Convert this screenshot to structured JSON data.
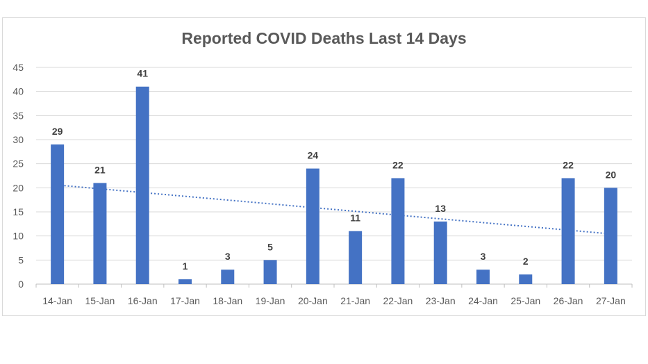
{
  "chart_data": {
    "type": "bar",
    "title": "Reported COVID Deaths Last 14 Days",
    "xlabel": "",
    "ylabel": "",
    "categories": [
      "14-Jan",
      "15-Jan",
      "16-Jan",
      "17-Jan",
      "18-Jan",
      "19-Jan",
      "20-Jan",
      "21-Jan",
      "22-Jan",
      "23-Jan",
      "24-Jan",
      "25-Jan",
      "26-Jan",
      "27-Jan"
    ],
    "values": [
      29,
      21,
      41,
      1,
      3,
      5,
      24,
      11,
      22,
      13,
      3,
      2,
      22,
      20
    ],
    "ylim": [
      0,
      45
    ],
    "yticks": [
      0,
      5,
      10,
      15,
      20,
      25,
      30,
      35,
      40,
      45
    ],
    "grid": true,
    "trendline": "linear (dotted)",
    "legend": "none",
    "colors": {
      "bar": "#4472c4",
      "trend": "#4472c4",
      "grid": "#d9d9d9",
      "text": "#595959",
      "label": "#404040"
    }
  }
}
